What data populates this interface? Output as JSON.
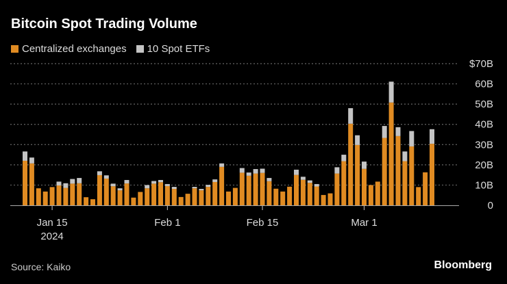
{
  "title": "Bitcoin Spot Trading Volume",
  "source": "Source: Kaiko",
  "logo": "Bloomberg",
  "colors": {
    "centralized": "#e08b22",
    "etf": "#c4c4c4",
    "background": "#000000",
    "grid": "#666666"
  },
  "chart_data": {
    "type": "bar",
    "stacked": true,
    "title": "Bitcoin Spot Trading Volume",
    "legend_position": "top-left",
    "grid": true,
    "ylim": [
      0,
      70
    ],
    "y_unit": "B USD",
    "y_ticks": [
      "0",
      "10B",
      "20B",
      "30B",
      "40B",
      "50B",
      "60B",
      "$70B"
    ],
    "y_tick_values": [
      0,
      10,
      20,
      30,
      40,
      50,
      60,
      70
    ],
    "x_ticks": [
      {
        "date": "2024-01-15",
        "label": "Jan 15",
        "sublabel": "2024"
      },
      {
        "date": "2024-02-01",
        "label": "Feb 1",
        "sublabel": ""
      },
      {
        "date": "2024-02-15",
        "label": "Feb 15",
        "sublabel": ""
      },
      {
        "date": "2024-03-01",
        "label": "Mar 1",
        "sublabel": ""
      }
    ],
    "x": [
      "2024-01-11",
      "2024-01-12",
      "2024-01-13",
      "2024-01-14",
      "2024-01-15",
      "2024-01-16",
      "2024-01-17",
      "2024-01-18",
      "2024-01-19",
      "2024-01-20",
      "2024-01-21",
      "2024-01-22",
      "2024-01-23",
      "2024-01-24",
      "2024-01-25",
      "2024-01-26",
      "2024-01-27",
      "2024-01-28",
      "2024-01-29",
      "2024-01-30",
      "2024-01-31",
      "2024-02-01",
      "2024-02-02",
      "2024-02-03",
      "2024-02-04",
      "2024-02-05",
      "2024-02-06",
      "2024-02-07",
      "2024-02-08",
      "2024-02-09",
      "2024-02-10",
      "2024-02-11",
      "2024-02-12",
      "2024-02-13",
      "2024-02-14",
      "2024-02-15",
      "2024-02-16",
      "2024-02-17",
      "2024-02-18",
      "2024-02-19",
      "2024-02-20",
      "2024-02-21",
      "2024-02-22",
      "2024-02-23",
      "2024-02-24",
      "2024-02-25",
      "2024-02-26",
      "2024-02-27",
      "2024-02-28",
      "2024-02-29",
      "2024-03-01",
      "2024-03-02",
      "2024-03-03",
      "2024-03-04",
      "2024-03-05",
      "2024-03-06",
      "2024-03-07",
      "2024-03-08",
      "2024-03-09",
      "2024-03-10",
      "2024-03-11"
    ],
    "series": [
      {
        "name": "Centralized exchanges",
        "values": [
          22.0,
          20.7,
          8.4,
          6.8,
          9.0,
          9.8,
          8.6,
          10.7,
          10.9,
          4.0,
          3.0,
          14.9,
          13.2,
          9.4,
          7.4,
          10.8,
          3.8,
          6.6,
          8.4,
          10.7,
          11.4,
          9.5,
          8.1,
          4.1,
          5.7,
          8.4,
          7.4,
          9.1,
          11.5,
          19.0,
          6.8,
          8.6,
          16.1,
          14.6,
          15.7,
          16.0,
          11.9,
          8.2,
          6.8,
          9.2,
          15.0,
          12.6,
          11.1,
          9.3,
          5.1,
          5.9,
          15.7,
          21.8,
          40.3,
          29.8,
          18.0,
          10.0,
          11.7,
          33.3,
          50.8,
          34.2,
          21.8,
          29.1,
          9.0,
          16.3,
          30.4
        ]
      },
      {
        "name": "10 Spot ETFs",
        "values": [
          4.6,
          2.9,
          0,
          0,
          0,
          1.9,
          2.3,
          2.3,
          2.6,
          0,
          0,
          1.9,
          1.6,
          1.3,
          1.0,
          1.7,
          0,
          0,
          1.6,
          1.3,
          1.1,
          1.0,
          1.0,
          0,
          0,
          0.7,
          0.7,
          1.0,
          1.3,
          1.7,
          0,
          0,
          2.3,
          1.6,
          2.2,
          2.1,
          1.6,
          0,
          0,
          0,
          2.6,
          1.5,
          1.2,
          1.2,
          0,
          0,
          3.1,
          3.2,
          7.7,
          4.8,
          3.6,
          0,
          0,
          5.9,
          10.3,
          4.4,
          4.8,
          7.6,
          0,
          0,
          7.2
        ]
      }
    ]
  }
}
